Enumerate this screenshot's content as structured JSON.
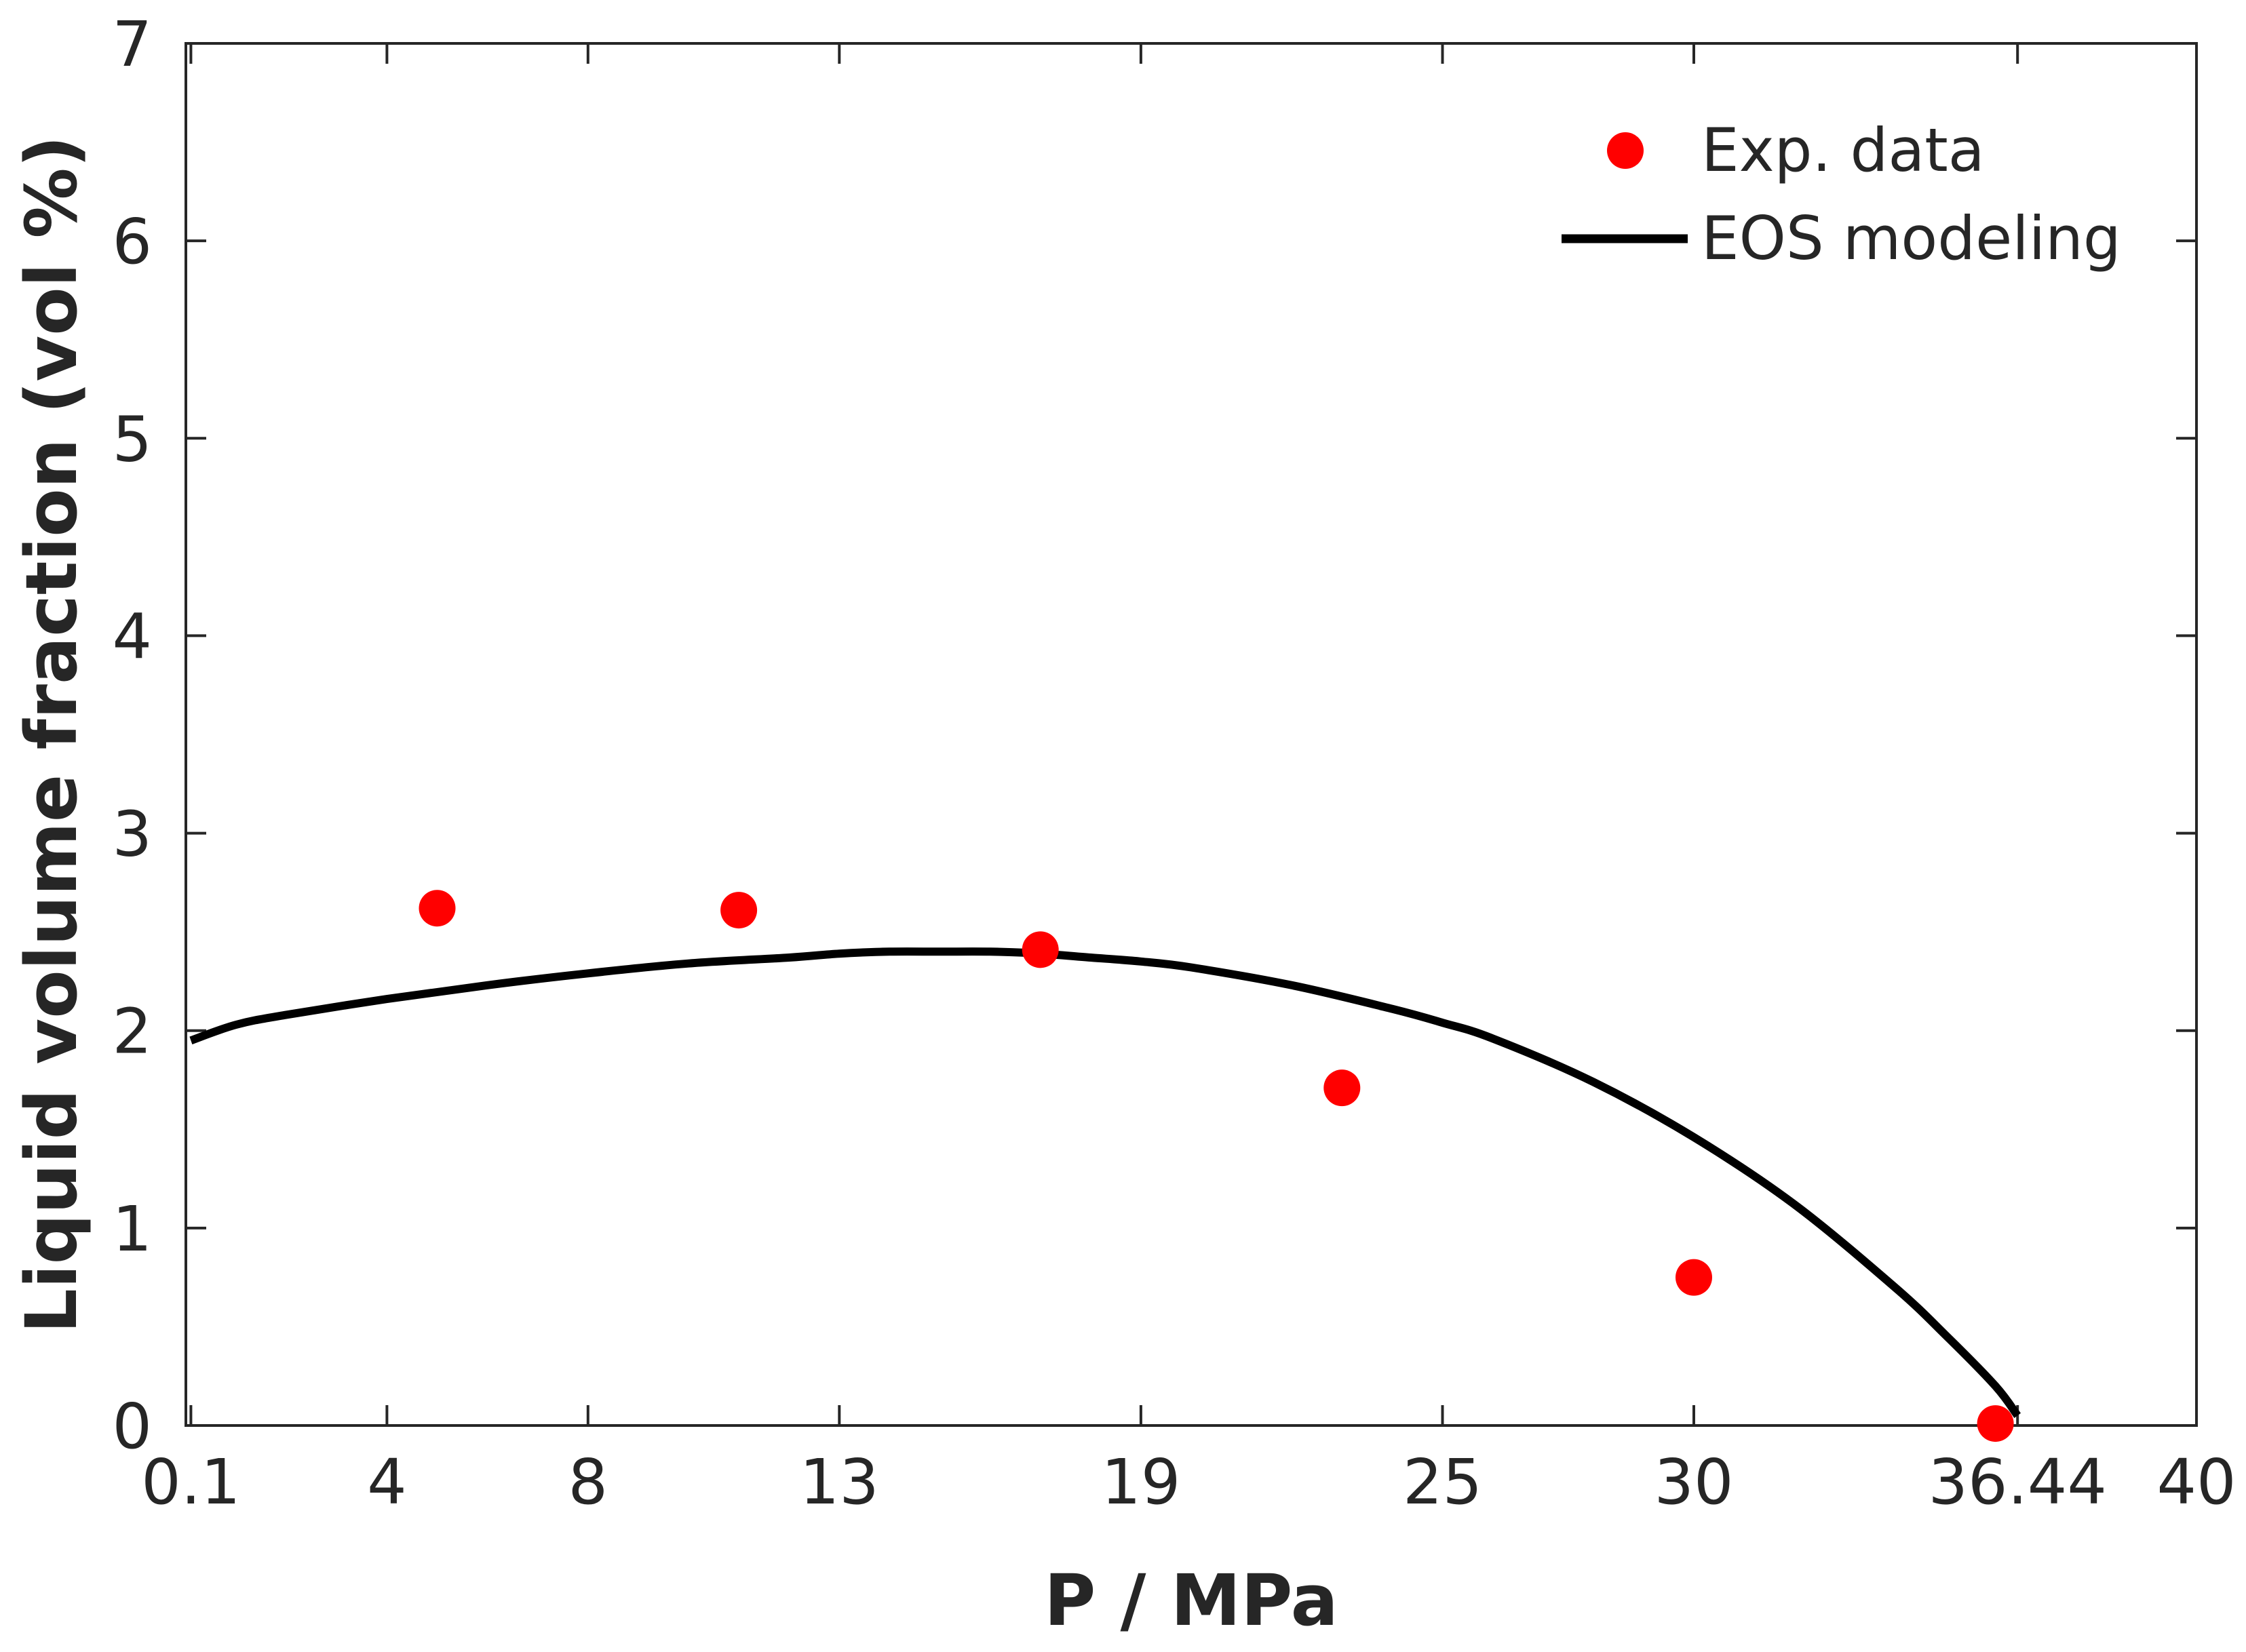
{
  "chart_data": {
    "type": "scatter",
    "title": "",
    "xlabel": "P / MPa",
    "ylabel": "Liquid volume fraction (vol %)",
    "xlim": [
      0,
      40
    ],
    "ylim": [
      0,
      7
    ],
    "x_ticks": [
      0.1,
      4,
      8,
      13,
      19,
      25,
      30,
      36.44,
      40
    ],
    "x_tick_labels": [
      "0.1",
      "4",
      "8",
      "13",
      "19",
      "25",
      "30",
      "36.44",
      "40"
    ],
    "y_ticks": [
      0,
      1,
      2,
      3,
      4,
      5,
      6,
      7
    ],
    "y_tick_labels": [
      "0",
      "1",
      "2",
      "3",
      "4",
      "5",
      "6",
      "7"
    ],
    "grid": false,
    "legend_position": "top-right",
    "series": [
      {
        "name": "Exp. data",
        "kind": "scatter",
        "color": "#ff0000",
        "x": [
          5,
          11,
          17,
          23,
          30,
          36
        ],
        "y": [
          2.62,
          2.61,
          2.41,
          1.71,
          0.75,
          0.01
        ]
      },
      {
        "name": "EOS modeling",
        "kind": "line",
        "color": "#000000",
        "x": [
          0.1,
          1,
          2,
          4,
          6,
          8,
          10,
          12,
          13,
          14,
          15,
          16,
          17,
          18,
          19,
          20,
          22,
          24,
          25,
          26,
          28,
          30,
          32,
          34,
          35,
          36,
          36.44
        ],
        "y": [
          1.95,
          2.03,
          2.08,
          2.16,
          2.23,
          2.29,
          2.34,
          2.37,
          2.39,
          2.4,
          2.4,
          2.4,
          2.39,
          2.37,
          2.35,
          2.32,
          2.23,
          2.11,
          2.04,
          1.96,
          1.74,
          1.46,
          1.12,
          0.7,
          0.46,
          0.2,
          0.05
        ]
      }
    ]
  }
}
